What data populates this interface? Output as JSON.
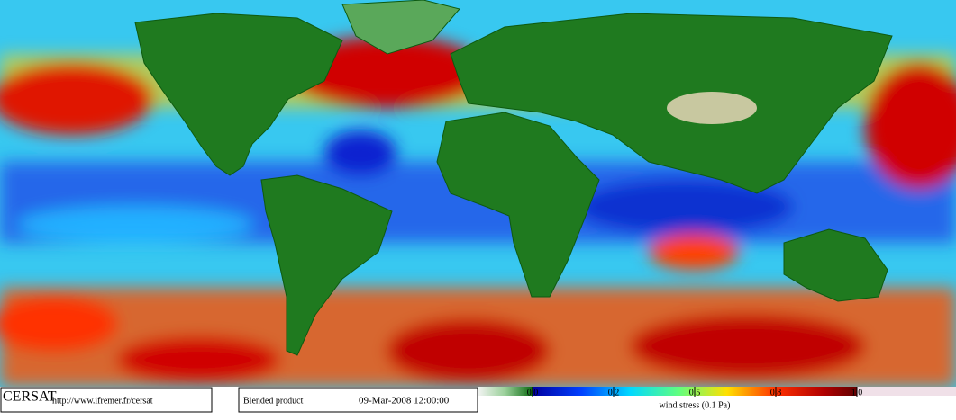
{
  "footer": {
    "logo": "CERSAT",
    "url": "http://www.ifremer.fr/cersat",
    "product": "Blended product",
    "date": "09-Mar-2008 12:00:00"
  },
  "colorbar": {
    "label": "wind stress (0.1 Pa)",
    "ticks": [
      {
        "value": 0,
        "label": "0.0"
      },
      0.2,
      0.5,
      0.8,
      {
        "value": 1,
        "label": "1.0"
      }
    ]
  }
}
